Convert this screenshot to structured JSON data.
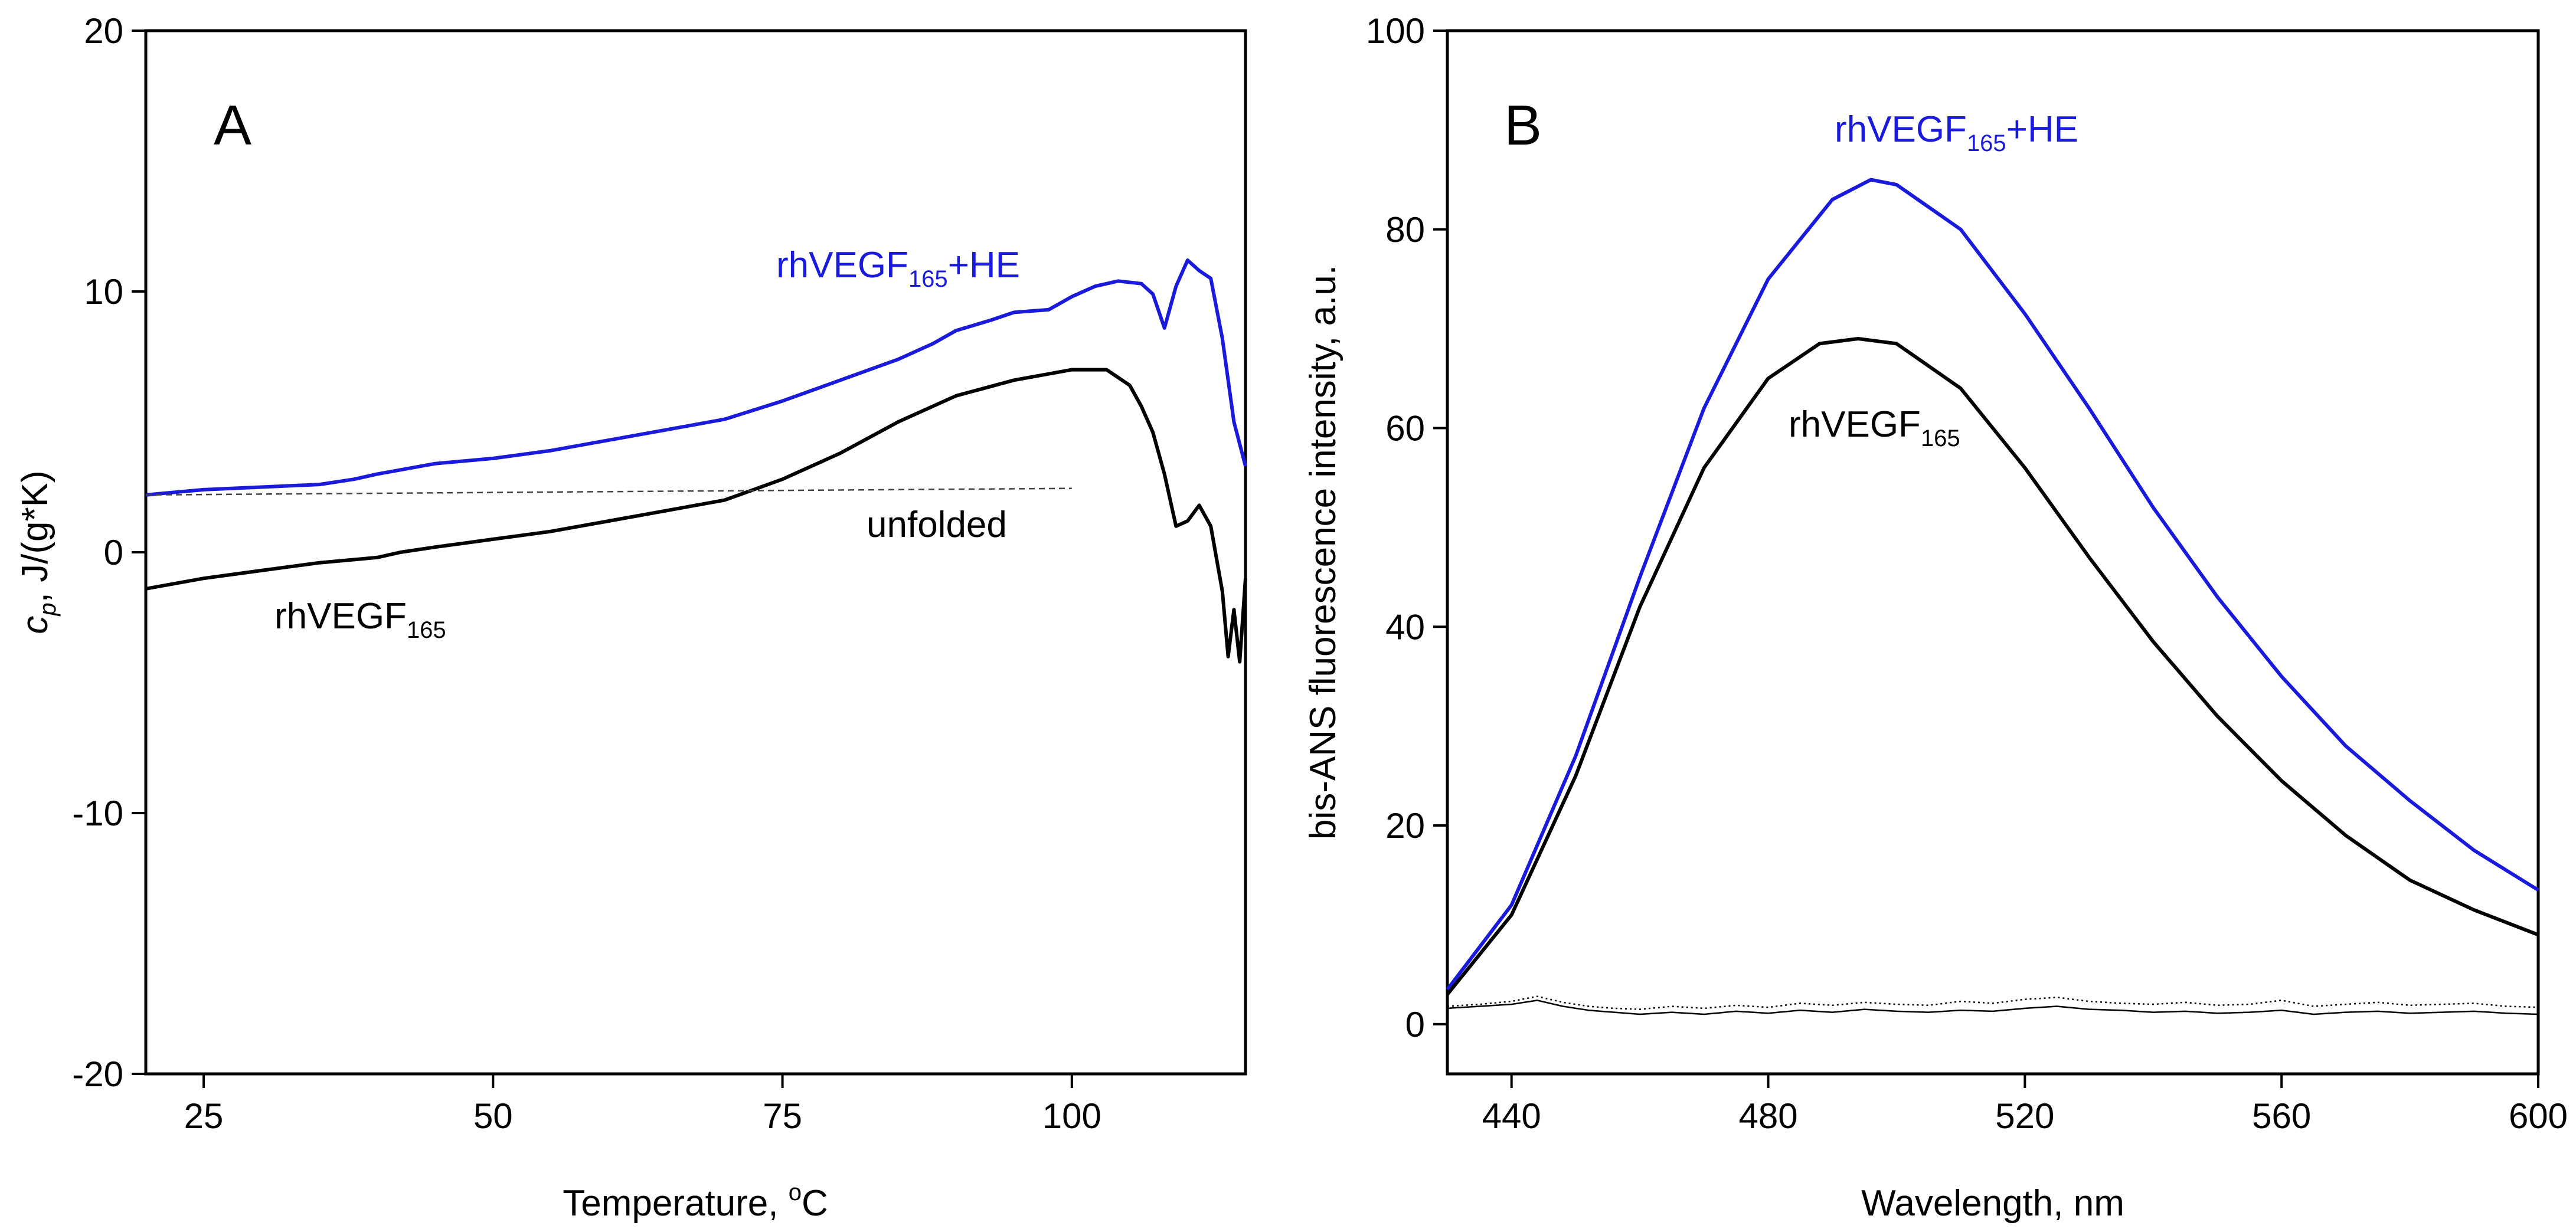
{
  "chart_data": [
    {
      "type": "line",
      "panel_label": "A",
      "xlabel": "Temperature, ",
      "xlabel_sup": "o",
      "xlabel_unit": "C",
      "ylabel_var": "c",
      "ylabel_sub": "p",
      "ylabel_rest": ", J/(g*K)",
      "xlim": [
        20,
        115
      ],
      "ylim": [
        -20,
        20
      ],
      "xticks": [
        25,
        50,
        75,
        100
      ],
      "yticks": [
        -20,
        -10,
        0,
        10,
        20
      ],
      "grid": false,
      "series": [
        {
          "name": "rhVEGF165+HE",
          "label_main": "rhVEGF",
          "label_sub": "165",
          "label_tail": "+HE",
          "color": "#1a1adc",
          "style": "solid",
          "x": [
            20,
            25,
            30,
            35,
            38,
            40,
            45,
            50,
            55,
            60,
            65,
            70,
            75,
            80,
            85,
            88,
            90,
            93,
            95,
            98,
            100,
            102,
            104,
            106,
            107,
            108,
            109,
            110,
            111,
            112,
            113,
            114,
            115
          ],
          "y": [
            2.2,
            2.4,
            2.5,
            2.6,
            2.8,
            3.0,
            3.4,
            3.6,
            3.9,
            4.3,
            4.7,
            5.1,
            5.8,
            6.6,
            7.4,
            8.0,
            8.5,
            8.9,
            9.2,
            9.3,
            9.8,
            10.2,
            10.4,
            10.3,
            9.9,
            8.6,
            10.2,
            11.2,
            10.8,
            10.5,
            8.2,
            5.0,
            3.3
          ]
        },
        {
          "name": "rhVEGF165",
          "label_main": "rhVEGF",
          "label_sub": "165",
          "label_tail": "",
          "color": "#000000",
          "style": "solid",
          "x": [
            20,
            25,
            30,
            35,
            40,
            42,
            45,
            50,
            55,
            60,
            65,
            70,
            75,
            80,
            85,
            90,
            95,
            100,
            103,
            105,
            106,
            107,
            108,
            109,
            110,
            111,
            112,
            113,
            113.5,
            114,
            114.5,
            115
          ],
          "y": [
            -1.4,
            -1.0,
            -0.7,
            -0.4,
            -0.2,
            0.0,
            0.2,
            0.5,
            0.8,
            1.2,
            1.6,
            2.0,
            2.8,
            3.8,
            5.0,
            6.0,
            6.6,
            7.0,
            7.0,
            6.4,
            5.6,
            4.6,
            3.0,
            1.0,
            1.2,
            1.8,
            1.0,
            -1.5,
            -4.0,
            -2.2,
            -4.2,
            -1.0
          ]
        },
        {
          "name": "unfolded",
          "label_main": "unfolded",
          "label_sub": "",
          "label_tail": "",
          "color": "#444444",
          "style": "dashed",
          "x": [
            20,
            100
          ],
          "y": [
            2.2,
            2.45
          ]
        }
      ]
    },
    {
      "type": "line",
      "panel_label": "B",
      "xlabel": "Wavelength, nm",
      "ylabel": "bis-ANS fluorescence intensity, a.u.",
      "xlim": [
        430,
        600
      ],
      "ylim": [
        -5,
        100
      ],
      "xticks": [
        440,
        480,
        520,
        560,
        600
      ],
      "yticks": [
        0,
        20,
        40,
        60,
        80,
        100
      ],
      "grid": false,
      "series": [
        {
          "name": "rhVEGF165+HE",
          "label_main": "rhVEGF",
          "label_sub": "165",
          "label_tail": "+HE",
          "color": "#1a1adc",
          "style": "solid",
          "x": [
            430,
            440,
            450,
            460,
            470,
            480,
            490,
            496,
            500,
            510,
            520,
            530,
            540,
            550,
            560,
            570,
            580,
            590,
            600
          ],
          "y": [
            3.5,
            12,
            27,
            45,
            62,
            75,
            83,
            85,
            84.5,
            80,
            71.5,
            62,
            52,
            43,
            35,
            28,
            22.5,
            17.5,
            13.5
          ]
        },
        {
          "name": "rhVEGF165",
          "label_main": "rhVEGF",
          "label_sub": "165",
          "label_tail": "",
          "color": "#000000",
          "style": "solid",
          "x": [
            430,
            440,
            450,
            460,
            470,
            480,
            488,
            494,
            500,
            510,
            520,
            530,
            540,
            550,
            560,
            570,
            580,
            590,
            600
          ],
          "y": [
            3.0,
            11,
            25,
            42,
            56,
            65,
            68.5,
            69,
            68.5,
            64,
            56,
            47,
            38.5,
            31,
            24.5,
            19,
            14.5,
            11.5,
            9
          ]
        },
        {
          "name": "baseline-solid",
          "color": "#000000",
          "style": "thin",
          "x": [
            430,
            435,
            440,
            444,
            448,
            452,
            456,
            460,
            465,
            470,
            475,
            480,
            485,
            490,
            495,
            500,
            505,
            510,
            515,
            520,
            525,
            530,
            535,
            540,
            545,
            550,
            555,
            560,
            565,
            570,
            575,
            580,
            585,
            590,
            595,
            600
          ],
          "y": [
            1.6,
            1.8,
            2.0,
            2.4,
            1.8,
            1.4,
            1.2,
            1.0,
            1.2,
            1.0,
            1.3,
            1.1,
            1.4,
            1.2,
            1.5,
            1.3,
            1.2,
            1.4,
            1.3,
            1.6,
            1.8,
            1.5,
            1.4,
            1.2,
            1.3,
            1.1,
            1.2,
            1.4,
            1.0,
            1.2,
            1.3,
            1.1,
            1.2,
            1.3,
            1.1,
            1.0
          ]
        },
        {
          "name": "baseline-dotted",
          "color": "#000000",
          "style": "dotted",
          "x": [
            430,
            435,
            440,
            444,
            448,
            452,
            456,
            460,
            465,
            470,
            475,
            480,
            485,
            490,
            495,
            500,
            505,
            510,
            515,
            520,
            525,
            530,
            535,
            540,
            545,
            550,
            555,
            560,
            565,
            570,
            575,
            580,
            585,
            590,
            595,
            600
          ],
          "y": [
            1.8,
            2.0,
            2.3,
            2.8,
            2.2,
            1.8,
            1.6,
            1.5,
            1.8,
            1.6,
            1.9,
            1.7,
            2.1,
            1.9,
            2.2,
            2.0,
            1.9,
            2.3,
            2.1,
            2.5,
            2.7,
            2.3,
            2.1,
            2.0,
            2.2,
            1.9,
            2.0,
            2.4,
            1.8,
            2.0,
            2.2,
            1.9,
            2.0,
            2.1,
            1.8,
            1.7
          ]
        }
      ]
    }
  ]
}
